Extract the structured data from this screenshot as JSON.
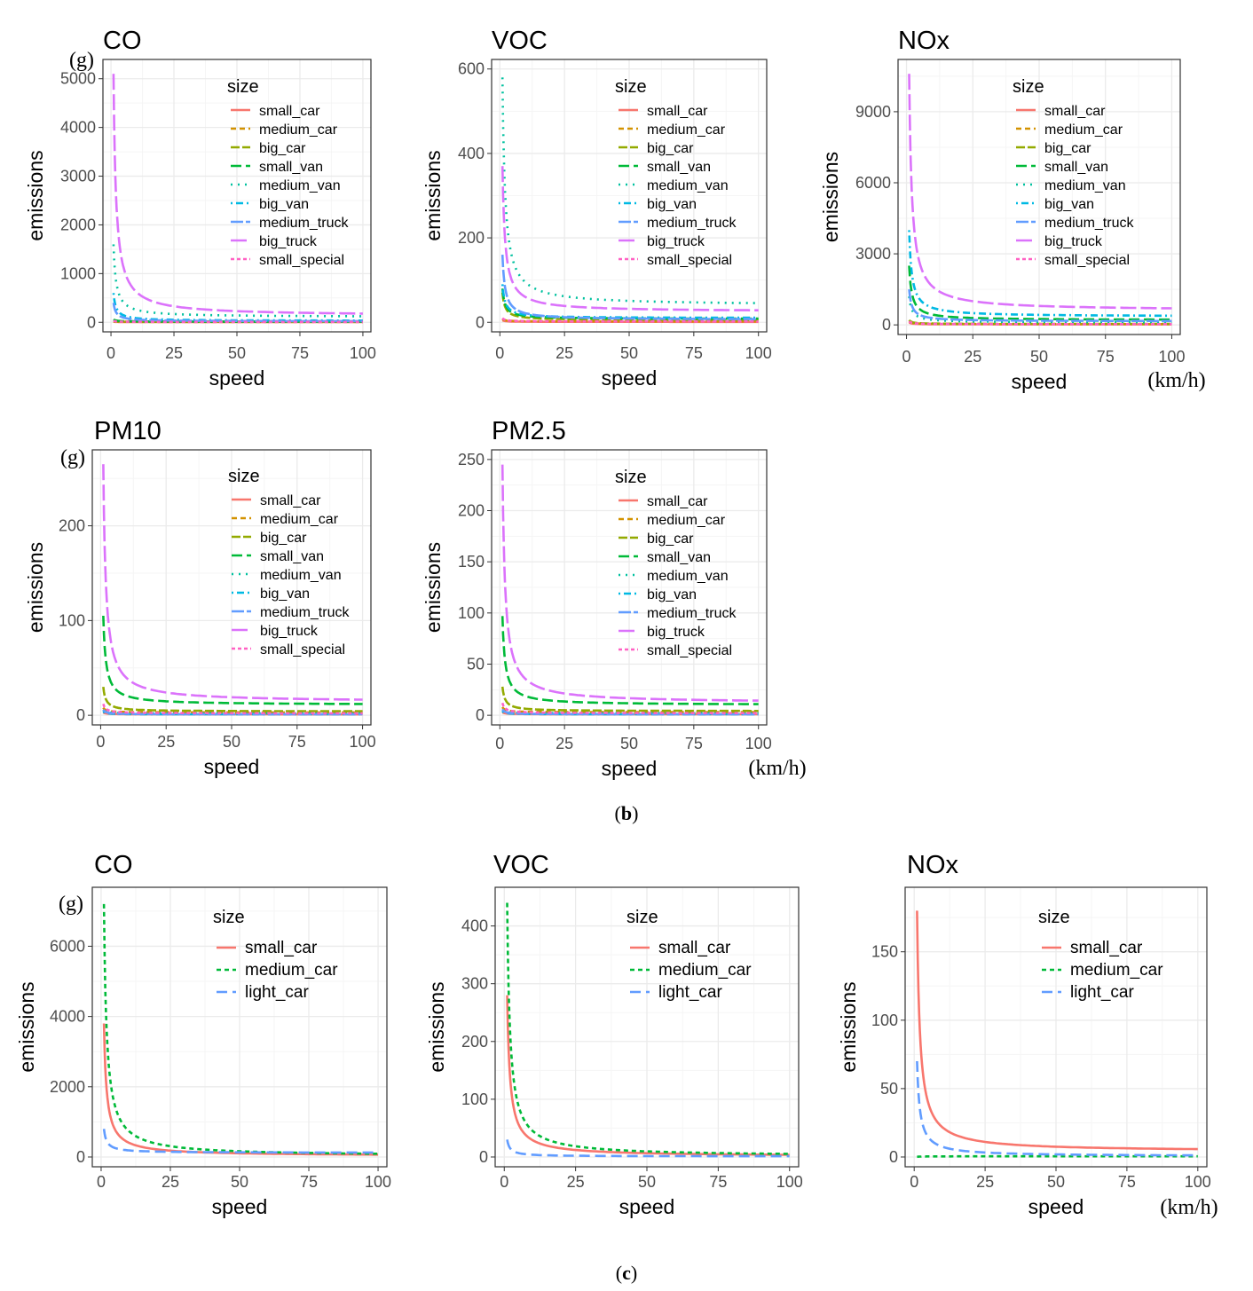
{
  "figure": {
    "panel_b_label": "(b)",
    "panel_c_label": "(c)",
    "b_label_text": "b",
    "c_label_text": "c",
    "paren_open": "(",
    "paren_close": ")"
  },
  "colors": {
    "small_car": "#F8766D",
    "medium_car": "#D39200",
    "big_car": "#93AA00",
    "small_van": "#00BA38",
    "medium_van": "#00C19F",
    "big_van": "#00B9E3",
    "medium_truck": "#619CFF",
    "big_truck": "#DB72FB",
    "small_special": "#FF61C3",
    "c_small_car": "#F8766D",
    "c_medium_car": "#00BA38",
    "c_light_car": "#619CFF",
    "grid_major": "#ebebeb",
    "grid_minor": "#f5f5f5",
    "frame": "#333333"
  },
  "chart_data": [
    {
      "type": "line",
      "title": "CO",
      "unit_y": "(g)",
      "unit_x": "",
      "xlabel": "speed",
      "ylabel": "emissions",
      "xlim": [
        0,
        100
      ],
      "ylim": [
        0,
        5200
      ],
      "xticks": [
        0,
        25,
        50,
        75,
        100
      ],
      "yticks": [
        0,
        1000,
        2000,
        3000,
        4000,
        5000
      ],
      "legend_title": "size",
      "legend_position": "top-right",
      "series": [
        {
          "name": "small_car",
          "k": 12,
          "base": 5
        },
        {
          "name": "medium_car",
          "k": 20,
          "base": 8
        },
        {
          "name": "big_car",
          "k": 25,
          "base": 10
        },
        {
          "name": "small_van",
          "k": 60,
          "base": 15
        },
        {
          "name": "medium_van",
          "k": 1600,
          "base": 110
        },
        {
          "name": "big_van",
          "k": 600,
          "base": 30
        },
        {
          "name": "medium_truck",
          "k": 400,
          "base": 20
        },
        {
          "name": "big_truck",
          "k": 5100,
          "base": 130
        },
        {
          "name": "small_special",
          "k": 30,
          "base": 8
        }
      ]
    },
    {
      "type": "line",
      "title": "VOC",
      "unit_y": "",
      "unit_x": "",
      "xlabel": "speed",
      "ylabel": "emissions",
      "xlim": [
        0,
        100
      ],
      "ylim": [
        0,
        600
      ],
      "xticks": [
        0,
        25,
        50,
        75,
        100
      ],
      "yticks": [
        0,
        200,
        400,
        600
      ],
      "legend_title": "size",
      "legend_position": "top-right",
      "series": [
        {
          "name": "small_car",
          "k": 5,
          "base": 1
        },
        {
          "name": "medium_car",
          "k": 8,
          "base": 2
        },
        {
          "name": "big_car",
          "k": 70,
          "base": 5
        },
        {
          "name": "small_van",
          "k": 80,
          "base": 8
        },
        {
          "name": "medium_van",
          "k": 580,
          "base": 40
        },
        {
          "name": "big_van",
          "k": 90,
          "base": 10
        },
        {
          "name": "medium_truck",
          "k": 160,
          "base": 6
        },
        {
          "name": "big_truck",
          "k": 370,
          "base": 25
        },
        {
          "name": "small_special",
          "k": 10,
          "base": 2
        }
      ]
    },
    {
      "type": "line",
      "title": "NOx",
      "unit_y": "",
      "unit_x": "(km/h)",
      "xlabel": "speed",
      "ylabel": "emissions",
      "xlim": [
        0,
        100
      ],
      "ylim": [
        0,
        10800
      ],
      "xticks": [
        0,
        25,
        50,
        75,
        100
      ],
      "yticks": [
        0,
        3000,
        6000,
        9000
      ],
      "legend_title": "size",
      "legend_position": "top-right",
      "series": [
        {
          "name": "small_car",
          "k": 100,
          "base": 20
        },
        {
          "name": "medium_car",
          "k": 150,
          "base": 30
        },
        {
          "name": "big_car",
          "k": 200,
          "base": 40
        },
        {
          "name": "small_van",
          "k": 2500,
          "base": 200
        },
        {
          "name": "medium_van",
          "k": 1200,
          "base": 100
        },
        {
          "name": "big_van",
          "k": 4000,
          "base": 350
        },
        {
          "name": "medium_truck",
          "k": 1500,
          "base": 150
        },
        {
          "name": "big_truck",
          "k": 10600,
          "base": 600
        },
        {
          "name": "small_special",
          "k": 150,
          "base": 30
        }
      ]
    },
    {
      "type": "line",
      "title": "PM10",
      "unit_y": "(g)",
      "unit_x": "",
      "xlabel": "speed",
      "ylabel": "emissions",
      "xlim": [
        0,
        100
      ],
      "ylim": [
        0,
        270
      ],
      "xticks": [
        0,
        25,
        50,
        75,
        100
      ],
      "yticks": [
        0,
        100,
        200
      ],
      "legend_title": "size",
      "legend_position": "top-right",
      "series": [
        {
          "name": "small_car",
          "k": 3,
          "base": 1
        },
        {
          "name": "medium_car",
          "k": 8,
          "base": 3
        },
        {
          "name": "big_car",
          "k": 30,
          "base": 4
        },
        {
          "name": "small_van",
          "k": 105,
          "base": 11
        },
        {
          "name": "medium_van",
          "k": 5,
          "base": 2
        },
        {
          "name": "big_van",
          "k": 4,
          "base": 1
        },
        {
          "name": "medium_truck",
          "k": 6,
          "base": 1
        },
        {
          "name": "big_truck",
          "k": 265,
          "base": 14
        },
        {
          "name": "small_special",
          "k": 12,
          "base": 2
        }
      ]
    },
    {
      "type": "line",
      "title": "PM2.5",
      "unit_y": "",
      "unit_x": "(km/h)",
      "xlabel": "speed",
      "ylabel": "emissions",
      "xlim": [
        0,
        100
      ],
      "ylim": [
        0,
        250
      ],
      "xticks": [
        0,
        25,
        50,
        75,
        100
      ],
      "yticks": [
        0,
        50,
        100,
        150,
        200,
        250
      ],
      "legend_title": "size",
      "legend_position": "top-right",
      "series": [
        {
          "name": "small_car",
          "k": 3,
          "base": 1
        },
        {
          "name": "medium_car",
          "k": 8,
          "base": 3
        },
        {
          "name": "big_car",
          "k": 28,
          "base": 4
        },
        {
          "name": "small_van",
          "k": 97,
          "base": 10
        },
        {
          "name": "medium_van",
          "k": 5,
          "base": 2
        },
        {
          "name": "big_van",
          "k": 4,
          "base": 1
        },
        {
          "name": "medium_truck",
          "k": 6,
          "base": 1
        },
        {
          "name": "big_truck",
          "k": 245,
          "base": 12
        },
        {
          "name": "small_special",
          "k": 12,
          "base": 2
        }
      ]
    },
    {
      "type": "line",
      "title": "CO",
      "unit_y": "(g)",
      "unit_x": "",
      "xlabel": "speed",
      "ylabel": "emissions",
      "xlim": [
        0,
        100
      ],
      "ylim": [
        0,
        7400
      ],
      "xticks": [
        0,
        25,
        50,
        75,
        100
      ],
      "yticks": [
        0,
        2000,
        4000,
        6000
      ],
      "legend_title": "size",
      "legend_position": "top-right",
      "series": [
        {
          "name": "small_car",
          "k": 3800,
          "base": 30
        },
        {
          "name": "medium_car",
          "k": 7200,
          "base": 20
        },
        {
          "name": "light_car",
          "k": 800,
          "base": 120
        }
      ]
    },
    {
      "type": "line",
      "title": "VOC",
      "unit_y": "",
      "unit_x": "",
      "xlabel": "speed",
      "ylabel": "emissions",
      "xlim": [
        0,
        100
      ],
      "ylim": [
        0,
        450
      ],
      "xticks": [
        0,
        25,
        50,
        75,
        100
      ],
      "yticks": [
        0,
        100,
        200,
        300,
        400
      ],
      "legend_title": "size",
      "legend_position": "top-right",
      "series": [
        {
          "name": "small_car",
          "k": 280,
          "base": 1
        },
        {
          "name": "medium_car",
          "k": 440,
          "base": 1
        },
        {
          "name": "light_car",
          "k": 30,
          "base": 1
        }
      ]
    },
    {
      "type": "line",
      "title": "NOx",
      "unit_y": "",
      "unit_x": "(km/h)",
      "xlabel": "speed",
      "ylabel": "emissions",
      "xlim": [
        0,
        100
      ],
      "ylim": [
        0,
        190
      ],
      "xticks": [
        0,
        25,
        50,
        75,
        100
      ],
      "yticks": [
        0,
        50,
        100,
        150
      ],
      "legend_title": "size",
      "legend_position": "top-right",
      "series": [
        {
          "name": "small_car",
          "k": 180,
          "base": 4
        },
        {
          "name": "medium_car",
          "k": 0.1,
          "base": 0.5
        },
        {
          "name": "light_car",
          "k": 70,
          "base": 0.5
        }
      ]
    }
  ]
}
